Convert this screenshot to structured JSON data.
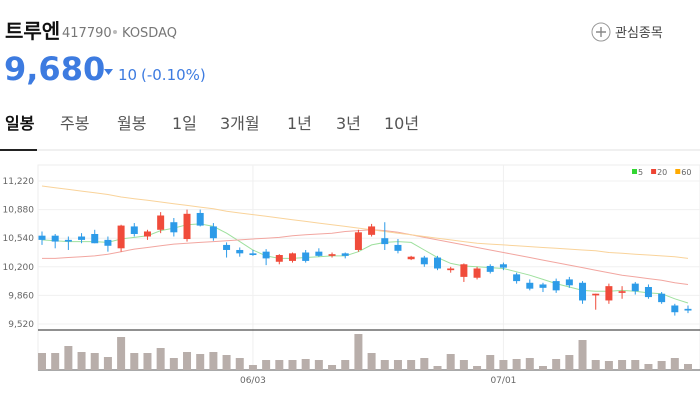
{
  "header": {
    "name": "트루엔",
    "code": "417790",
    "market": "KOSDAQ",
    "watch": "관심종목",
    "price": "9,680",
    "change": "10",
    "change_pct": "(-0.10%)"
  },
  "tabs": [
    "일봉",
    "주봉",
    "월봉",
    "1일",
    "3개월",
    "1년",
    "3년",
    "10년"
  ],
  "chart_data": {
    "type": "candlestick",
    "categories": [
      null,
      null,
      null,
      null,
      null,
      null,
      null,
      null,
      null,
      null,
      null,
      null,
      null,
      null,
      null,
      null,
      "06/03",
      null,
      null,
      null,
      null,
      null,
      null,
      null,
      null,
      null,
      null,
      null,
      null,
      null,
      null,
      null,
      null,
      null,
      null,
      "07/01",
      null,
      null,
      null,
      null,
      null,
      null,
      null,
      null,
      null,
      null,
      null,
      null,
      null,
      null
    ],
    "open": [
      10570,
      10570,
      10520,
      10560,
      10590,
      10520,
      10420,
      10680,
      10560,
      10640,
      10730,
      10530,
      10840,
      10680,
      10460,
      10400,
      10360,
      10380,
      10260,
      10270,
      10370,
      10380,
      10330,
      10360,
      10400,
      10580,
      10540,
      10460,
      10290,
      10310,
      10310,
      10160,
      10080,
      10070,
      10210,
      10230,
      10110,
      10010,
      9990,
      10030,
      10050,
      10010,
      9860,
      9800,
      9890,
      10000,
      9960,
      9880,
      9740,
      9700
    ],
    "high": [
      10620,
      10590,
      10560,
      10600,
      10640,
      10560,
      10700,
      10720,
      10640,
      10850,
      10780,
      10880,
      10880,
      10720,
      10490,
      10430,
      10400,
      10410,
      10350,
      10370,
      10400,
      10420,
      10370,
      10370,
      10640,
      10710,
      10730,
      10530,
      10330,
      10330,
      10330,
      10200,
      10240,
      10200,
      10230,
      10250,
      10130,
      10050,
      10010,
      10060,
      10080,
      10030,
      9880,
      10000,
      9970,
      10020,
      9990,
      9900,
      9760,
      9740
    ],
    "low": [
      10460,
      10420,
      10400,
      10480,
      10480,
      10380,
      10380,
      10560,
      10520,
      10600,
      10560,
      10500,
      10680,
      10510,
      10310,
      10320,
      10330,
      10220,
      10230,
      10250,
      10250,
      10320,
      10310,
      10300,
      10380,
      10560,
      10400,
      10360,
      10280,
      10200,
      10160,
      10130,
      10020,
      10050,
      10120,
      10160,
      10000,
      9920,
      9900,
      9890,
      9950,
      9760,
      9690,
      9760,
      9820,
      9870,
      9820,
      9760,
      9620,
      9650
    ],
    "close": [
      10520,
      10500,
      10500,
      10520,
      10480,
      10450,
      10690,
      10590,
      10620,
      10810,
      10610,
      10830,
      10690,
      10540,
      10400,
      10360,
      10340,
      10300,
      10340,
      10360,
      10270,
      10330,
      10350,
      10330,
      10610,
      10680,
      10470,
      10390,
      10320,
      10230,
      10180,
      10180,
      10230,
      10180,
      10140,
      10190,
      10030,
      9940,
      9950,
      9920,
      9980,
      9800,
      9880,
      9970,
      9910,
      9910,
      9840,
      9780,
      9660,
      9680
    ],
    "up_color": "#f04b3a",
    "down_color": "#2d9be8",
    "series": [
      {
        "name": "5",
        "color": "#33d633",
        "line_color": "#9ee09e",
        "values": [
          10520,
          10510,
          10500,
          10500,
          10500,
          10490,
          10530,
          10550,
          10570,
          10630,
          10660,
          10700,
          10710,
          10680,
          10600,
          10500,
          10400,
          10330,
          10300,
          10300,
          10310,
          10320,
          10330,
          10330,
          10380,
          10460,
          10490,
          10500,
          10490,
          10400,
          10310,
          10240,
          10210,
          10200,
          10190,
          10180,
          10140,
          10100,
          10050,
          10000,
          9960,
          9920,
          9910,
          9910,
          9920,
          9910,
          9890,
          9880,
          9820,
          9770
        ]
      },
      {
        "name": "20",
        "color": "#ee4433",
        "line_color": "#f2a6a0",
        "values": [
          10300,
          10300,
          10310,
          10320,
          10330,
          10350,
          10380,
          10410,
          10430,
          10450,
          10470,
          10480,
          10490,
          10500,
          10510,
          10520,
          10530,
          10540,
          10550,
          10570,
          10580,
          10590,
          10600,
          10620,
          10630,
          10640,
          10630,
          10610,
          10580,
          10550,
          10520,
          10490,
          10460,
          10430,
          10400,
          10370,
          10340,
          10310,
          10280,
          10250,
          10220,
          10190,
          10160,
          10130,
          10100,
          10080,
          10060,
          10040,
          10010,
          9990
        ]
      },
      {
        "name": "60",
        "color": "#ffaa00",
        "line_color": "#f9d39a",
        "values": [
          11160,
          11140,
          11120,
          11100,
          11080,
          11060,
          11030,
          11010,
          10990,
          10970,
          10950,
          10930,
          10910,
          10890,
          10860,
          10840,
          10820,
          10800,
          10780,
          10760,
          10740,
          10720,
          10700,
          10680,
          10660,
          10640,
          10620,
          10600,
          10580,
          10560,
          10540,
          10520,
          10500,
          10480,
          10470,
          10460,
          10450,
          10440,
          10430,
          10420,
          10410,
          10400,
          10390,
          10370,
          10360,
          10350,
          10340,
          10330,
          10320,
          10300
        ]
      }
    ],
    "volume": {
      "color": "#b8aeaa",
      "values": [
        17,
        17,
        24,
        18,
        17,
        13,
        33,
        17,
        17,
        22,
        12,
        18,
        16,
        18,
        15,
        12,
        5,
        10,
        10,
        10,
        11,
        10,
        5,
        10,
        36,
        17,
        10,
        10,
        10,
        12,
        4,
        16,
        10,
        4,
        15,
        10,
        11,
        12,
        4,
        11,
        15,
        30,
        10,
        9,
        10,
        10,
        6,
        9,
        12,
        6
      ]
    },
    "ylim": [
      9520,
      11220
    ],
    "yticks": [
      {
        "value": 9520,
        "label": "9,520"
      },
      {
        "value": 9860,
        "label": "9,860"
      },
      {
        "value": 10200,
        "label": "10,200"
      },
      {
        "value": 10540,
        "label": "10,540"
      },
      {
        "value": 10880,
        "label": "10,880"
      },
      {
        "value": 11220,
        "label": "11,220"
      }
    ],
    "grid": true,
    "legend": "top-right"
  }
}
